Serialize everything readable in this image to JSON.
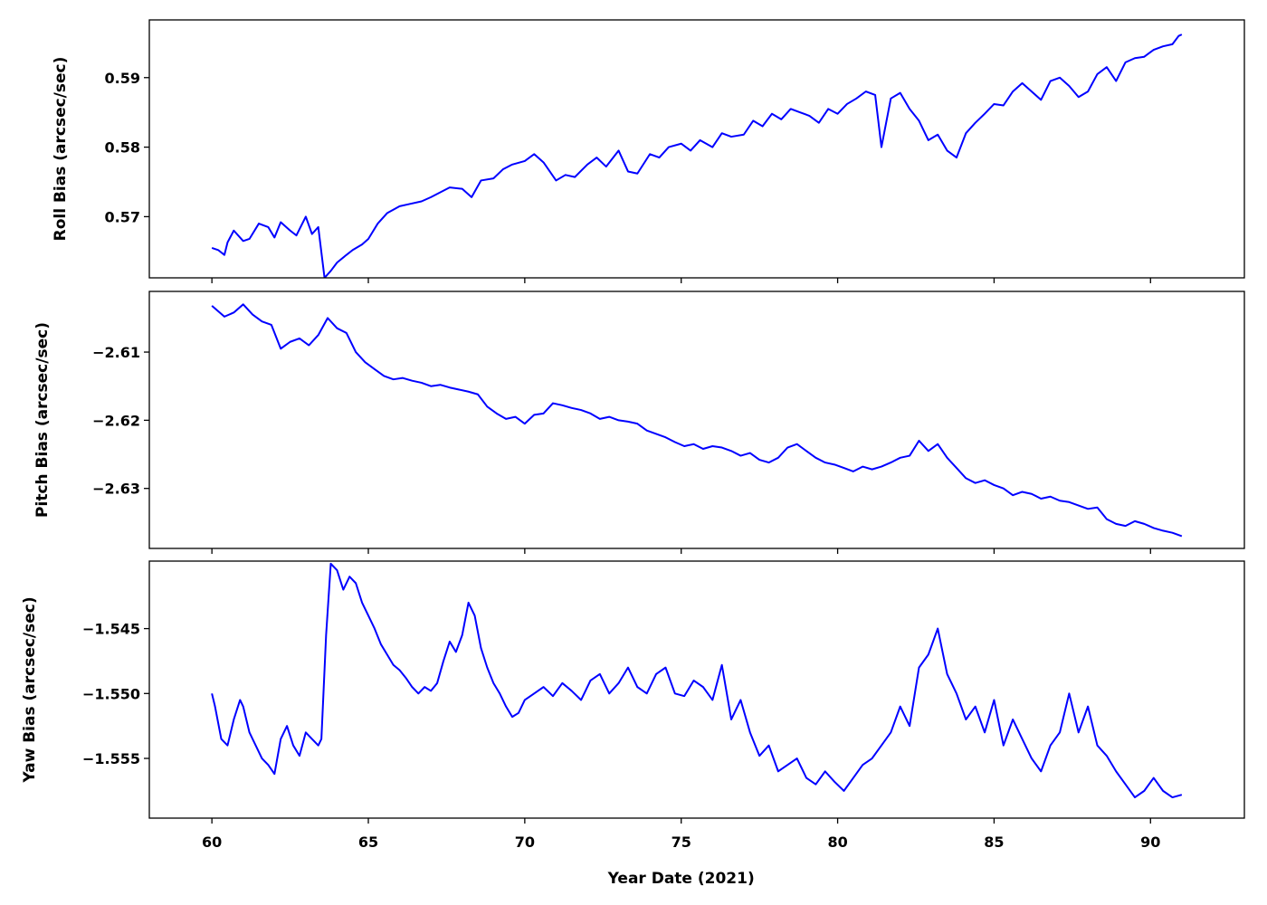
{
  "chart_data": [
    {
      "type": "line",
      "ylabel": "Roll Bias (arcsec/sec)",
      "xlim": [
        58.0,
        93.0
      ],
      "ylim": [
        0.5612,
        0.5983
      ],
      "yticks": [
        0.57,
        0.58,
        0.59
      ],
      "ytick_labels": [
        "0.57",
        "0.58",
        "0.59"
      ],
      "series": [
        {
          "color": "#0000ff",
          "x": [
            60.0,
            60.2,
            60.4,
            60.5,
            60.7,
            61.0,
            61.2,
            61.5,
            61.8,
            62.0,
            62.2,
            62.5,
            62.7,
            63.0,
            63.2,
            63.4,
            63.6,
            63.8,
            64.0,
            64.3,
            64.5,
            64.8,
            65.0,
            65.3,
            65.6,
            66.0,
            66.3,
            66.7,
            67.0,
            67.3,
            67.6,
            68.0,
            68.3,
            68.6,
            69.0,
            69.3,
            69.6,
            70.0,
            70.3,
            70.6,
            71.0,
            71.3,
            71.6,
            72.0,
            72.3,
            72.6,
            73.0,
            73.3,
            73.6,
            74.0,
            74.3,
            74.6,
            75.0,
            75.3,
            75.6,
            76.0,
            76.3,
            76.6,
            77.0,
            77.3,
            77.6,
            77.9,
            78.2,
            78.5,
            78.8,
            79.1,
            79.4,
            79.7,
            80.0,
            80.3,
            80.6,
            80.9,
            81.2,
            81.4,
            81.7,
            82.0,
            82.3,
            82.6,
            82.9,
            83.2,
            83.5,
            83.8,
            84.1,
            84.4,
            84.7,
            85.0,
            85.3,
            85.6,
            85.9,
            86.2,
            86.5,
            86.8,
            87.1,
            87.4,
            87.7,
            88.0,
            88.3,
            88.6,
            88.9,
            89.2,
            89.5,
            89.8,
            90.1,
            90.4,
            90.7,
            90.9,
            91.0
          ],
          "y": [
            0.5655,
            0.5652,
            0.5645,
            0.5663,
            0.568,
            0.5665,
            0.5668,
            0.569,
            0.5685,
            0.567,
            0.5692,
            0.568,
            0.5673,
            0.57,
            0.5675,
            0.5685,
            0.5612,
            0.5622,
            0.5634,
            0.5645,
            0.5652,
            0.566,
            0.5668,
            0.569,
            0.5705,
            0.5715,
            0.5718,
            0.5722,
            0.5728,
            0.5735,
            0.5742,
            0.574,
            0.5728,
            0.5752,
            0.5755,
            0.5768,
            0.5775,
            0.578,
            0.579,
            0.5778,
            0.5752,
            0.576,
            0.5757,
            0.5775,
            0.5785,
            0.5772,
            0.5795,
            0.5765,
            0.5762,
            0.579,
            0.5785,
            0.58,
            0.5805,
            0.5795,
            0.581,
            0.58,
            0.582,
            0.5815,
            0.5818,
            0.5838,
            0.583,
            0.5848,
            0.584,
            0.5855,
            0.585,
            0.5845,
            0.5835,
            0.5855,
            0.5848,
            0.5862,
            0.587,
            0.588,
            0.5875,
            0.58,
            0.587,
            0.5878,
            0.5855,
            0.5838,
            0.581,
            0.5818,
            0.5795,
            0.5785,
            0.582,
            0.5835,
            0.5848,
            0.5862,
            0.586,
            0.588,
            0.5892,
            0.588,
            0.5868,
            0.5895,
            0.59,
            0.5888,
            0.5872,
            0.588,
            0.5905,
            0.5915,
            0.5895,
            0.5922,
            0.5928,
            0.593,
            0.594,
            0.5945,
            0.5948,
            0.596,
            0.5962
          ]
        }
      ]
    },
    {
      "type": "line",
      "ylabel": "Pitch Bias (arcsec/sec)",
      "xlim": [
        58.0,
        93.0
      ],
      "ylim": [
        -2.6388,
        -2.6011
      ],
      "yticks": [
        -2.61,
        -2.62,
        -2.63
      ],
      "ytick_labels": [
        "−2.61",
        "−2.62",
        "−2.63"
      ],
      "series": [
        {
          "color": "#0000ff",
          "x": [
            60.0,
            60.2,
            60.4,
            60.7,
            61.0,
            61.3,
            61.6,
            61.9,
            62.2,
            62.5,
            62.8,
            63.1,
            63.4,
            63.7,
            64.0,
            64.3,
            64.6,
            64.9,
            65.2,
            65.5,
            65.8,
            66.1,
            66.4,
            66.7,
            67.0,
            67.3,
            67.6,
            67.9,
            68.2,
            68.5,
            68.8,
            69.1,
            69.4,
            69.7,
            70.0,
            70.3,
            70.6,
            70.9,
            71.2,
            71.5,
            71.8,
            72.1,
            72.4,
            72.7,
            73.0,
            73.3,
            73.6,
            73.9,
            74.2,
            74.5,
            74.8,
            75.1,
            75.4,
            75.7,
            76.0,
            76.3,
            76.6,
            76.9,
            77.2,
            77.5,
            77.8,
            78.1,
            78.4,
            78.7,
            79.0,
            79.3,
            79.6,
            79.9,
            80.2,
            80.5,
            80.8,
            81.1,
            81.4,
            81.7,
            82.0,
            82.3,
            82.6,
            82.9,
            83.2,
            83.5,
            83.8,
            84.1,
            84.4,
            84.7,
            85.0,
            85.3,
            85.6,
            85.9,
            86.2,
            86.5,
            86.8,
            87.1,
            87.4,
            87.7,
            88.0,
            88.3,
            88.6,
            88.9,
            89.2,
            89.5,
            89.8,
            90.1,
            90.4,
            90.7,
            91.0
          ],
          "y": [
            -2.6032,
            -2.604,
            -2.6048,
            -2.6042,
            -2.603,
            -2.6045,
            -2.6055,
            -2.606,
            -2.6095,
            -2.6085,
            -2.608,
            -2.609,
            -2.6075,
            -2.605,
            -2.6065,
            -2.6072,
            -2.61,
            -2.6115,
            -2.6125,
            -2.6135,
            -2.614,
            -2.6138,
            -2.6142,
            -2.6145,
            -2.615,
            -2.6148,
            -2.6152,
            -2.6155,
            -2.6158,
            -2.6162,
            -2.618,
            -2.619,
            -2.6198,
            -2.6195,
            -2.6205,
            -2.6192,
            -2.619,
            -2.6175,
            -2.6178,
            -2.6182,
            -2.6185,
            -2.619,
            -2.6198,
            -2.6195,
            -2.62,
            -2.6202,
            -2.6205,
            -2.6215,
            -2.622,
            -2.6225,
            -2.6232,
            -2.6238,
            -2.6235,
            -2.6242,
            -2.6238,
            -2.624,
            -2.6245,
            -2.6252,
            -2.6248,
            -2.6258,
            -2.6262,
            -2.6255,
            -2.624,
            -2.6235,
            -2.6245,
            -2.6255,
            -2.6262,
            -2.6265,
            -2.627,
            -2.6275,
            -2.6268,
            -2.6272,
            -2.6268,
            -2.6262,
            -2.6255,
            -2.6252,
            -2.623,
            -2.6245,
            -2.6235,
            -2.6255,
            -2.627,
            -2.6285,
            -2.6292,
            -2.6288,
            -2.6295,
            -2.63,
            -2.631,
            -2.6305,
            -2.6308,
            -2.6315,
            -2.6312,
            -2.6318,
            -2.632,
            -2.6325,
            -2.633,
            -2.6328,
            -2.6345,
            -2.6352,
            -2.6355,
            -2.6348,
            -2.6352,
            -2.6358,
            -2.6362,
            -2.6365,
            -2.637
          ]
        }
      ]
    },
    {
      "type": "line",
      "ylabel": "Yaw Bias (arcsec/sec)",
      "xlim": [
        58.0,
        93.0
      ],
      "ylim": [
        -1.5596,
        -1.5398
      ],
      "yticks": [
        -1.545,
        -1.55,
        -1.555
      ],
      "ytick_labels": [
        "−1.545",
        "−1.550",
        "−1.555"
      ],
      "xticks": [
        60,
        65,
        70,
        75,
        80,
        85,
        90
      ],
      "xtick_labels": [
        "60",
        "65",
        "70",
        "75",
        "80",
        "85",
        "90"
      ],
      "xlabel": "Year Date (2021)",
      "series": [
        {
          "color": "#0000ff",
          "x": [
            60.0,
            60.1,
            60.3,
            60.5,
            60.7,
            60.9,
            61.0,
            61.2,
            61.4,
            61.6,
            61.8,
            62.0,
            62.2,
            62.4,
            62.6,
            62.8,
            63.0,
            63.2,
            63.4,
            63.5,
            63.65,
            63.8,
            64.0,
            64.2,
            64.4,
            64.6,
            64.8,
            65.0,
            65.2,
            65.4,
            65.6,
            65.8,
            66.0,
            66.2,
            66.4,
            66.6,
            66.8,
            67.0,
            67.2,
            67.4,
            67.6,
            67.8,
            68.0,
            68.2,
            68.4,
            68.6,
            68.8,
            69.0,
            69.2,
            69.4,
            69.6,
            69.8,
            70.0,
            70.3,
            70.6,
            70.9,
            71.2,
            71.5,
            71.8,
            72.1,
            72.4,
            72.7,
            73.0,
            73.3,
            73.6,
            73.9,
            74.2,
            74.5,
            74.8,
            75.1,
            75.4,
            75.7,
            76.0,
            76.3,
            76.6,
            76.9,
            77.2,
            77.5,
            77.8,
            78.1,
            78.4,
            78.7,
            79.0,
            79.3,
            79.6,
            79.9,
            80.2,
            80.5,
            80.8,
            81.1,
            81.4,
            81.7,
            82.0,
            82.3,
            82.6,
            82.9,
            83.2,
            83.5,
            83.8,
            84.1,
            84.4,
            84.7,
            85.0,
            85.3,
            85.6,
            85.9,
            86.2,
            86.5,
            86.8,
            87.1,
            87.4,
            87.7,
            88.0,
            88.3,
            88.6,
            88.9,
            89.2,
            89.5,
            89.8,
            90.1,
            90.4,
            90.7,
            91.0
          ],
          "y": [
            -1.55,
            -1.551,
            -1.5535,
            -1.554,
            -1.552,
            -1.5505,
            -1.551,
            -1.553,
            -1.554,
            -1.555,
            -1.5555,
            -1.5562,
            -1.5535,
            -1.5525,
            -1.554,
            -1.5548,
            -1.553,
            -1.5535,
            -1.554,
            -1.5535,
            -1.5455,
            -1.54,
            -1.5405,
            -1.542,
            -1.541,
            -1.5415,
            -1.543,
            -1.544,
            -1.545,
            -1.5462,
            -1.547,
            -1.5478,
            -1.5482,
            -1.5488,
            -1.5495,
            -1.55,
            -1.5495,
            -1.5498,
            -1.5492,
            -1.5475,
            -1.546,
            -1.5468,
            -1.5455,
            -1.543,
            -1.544,
            -1.5465,
            -1.548,
            -1.5492,
            -1.55,
            -1.551,
            -1.5518,
            -1.5515,
            -1.5505,
            -1.55,
            -1.5495,
            -1.5502,
            -1.5492,
            -1.5498,
            -1.5505,
            -1.549,
            -1.5485,
            -1.55,
            -1.5492,
            -1.548,
            -1.5495,
            -1.55,
            -1.5485,
            -1.548,
            -1.55,
            -1.5502,
            -1.549,
            -1.5495,
            -1.5505,
            -1.5478,
            -1.552,
            -1.5505,
            -1.553,
            -1.5548,
            -1.554,
            -1.556,
            -1.5555,
            -1.555,
            -1.5565,
            -1.557,
            -1.556,
            -1.5568,
            -1.5575,
            -1.5565,
            -1.5555,
            -1.555,
            -1.554,
            -1.553,
            -1.551,
            -1.5525,
            -1.548,
            -1.547,
            -1.545,
            -1.5485,
            -1.55,
            -1.552,
            -1.551,
            -1.553,
            -1.5505,
            -1.554,
            -1.552,
            -1.5535,
            -1.555,
            -1.556,
            -1.554,
            -1.553,
            -1.55,
            -1.553,
            -1.551,
            -1.554,
            -1.5548,
            -1.556,
            -1.557,
            -1.558,
            -1.5575,
            -1.5565,
            -1.5575,
            -1.558,
            -1.5578
          ]
        }
      ]
    }
  ]
}
